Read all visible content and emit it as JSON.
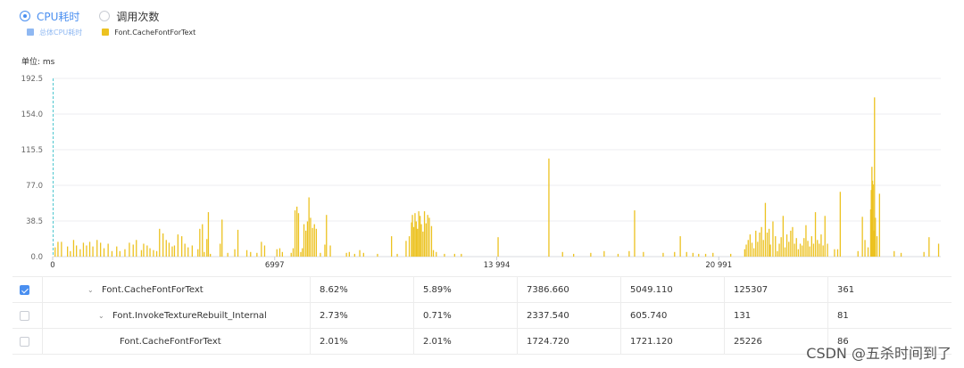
{
  "mode_toggle": {
    "options": [
      {
        "label": "CPU耗时",
        "selected": true
      },
      {
        "label": "调用次数",
        "selected": false
      }
    ]
  },
  "legend": {
    "items": [
      {
        "label": "总体CPU耗时",
        "color": "#8fb8f2"
      },
      {
        "label": "Font.CacheFontForText",
        "color": "#ecc220"
      }
    ]
  },
  "unit_label": "单位: ms",
  "chart_data": {
    "type": "bar",
    "ylabel": "",
    "xlabel": "",
    "ylim": [
      0,
      192.5
    ],
    "yticks": [
      "192.5",
      "154.0",
      "115.5",
      "77.0",
      "38.5",
      "0.0"
    ],
    "xlim": [
      0,
      27988
    ],
    "xticks": [
      "0",
      "6997",
      "13 994",
      "20 991"
    ],
    "grid": "horizontal",
    "series": [
      {
        "name": "Font.CacheFontForText",
        "color": "#ecc220",
        "points": [
          [
            60,
            10
          ],
          [
            150,
            16
          ],
          [
            260,
            16
          ],
          [
            450,
            11
          ],
          [
            540,
            6
          ],
          [
            640,
            18
          ],
          [
            730,
            12
          ],
          [
            850,
            8
          ],
          [
            950,
            15
          ],
          [
            1050,
            12
          ],
          [
            1150,
            16
          ],
          [
            1250,
            11
          ],
          [
            1380,
            18
          ],
          [
            1490,
            15
          ],
          [
            1600,
            9
          ],
          [
            1730,
            14
          ],
          [
            1850,
            6
          ],
          [
            2000,
            11
          ],
          [
            2100,
            6
          ],
          [
            2260,
            8
          ],
          [
            2400,
            15
          ],
          [
            2520,
            13
          ],
          [
            2620,
            18
          ],
          [
            2780,
            7
          ],
          [
            2850,
            14
          ],
          [
            2960,
            12
          ],
          [
            3050,
            9
          ],
          [
            3160,
            7
          ],
          [
            3260,
            6
          ],
          [
            3350,
            30
          ],
          [
            3460,
            25
          ],
          [
            3560,
            18
          ],
          [
            3650,
            15
          ],
          [
            3750,
            11
          ],
          [
            3820,
            12
          ],
          [
            3930,
            24
          ],
          [
            4050,
            22
          ],
          [
            4150,
            14
          ],
          [
            4250,
            10
          ],
          [
            4380,
            12
          ],
          [
            4560,
            8
          ],
          [
            4620,
            30
          ],
          [
            4700,
            35
          ],
          [
            4760,
            5
          ],
          [
            4840,
            19
          ],
          [
            4890,
            48
          ],
          [
            4950,
            3
          ],
          [
            5260,
            14
          ],
          [
            5320,
            40
          ],
          [
            5500,
            4
          ],
          [
            5720,
            8
          ],
          [
            5820,
            29
          ],
          [
            6100,
            7
          ],
          [
            6220,
            5
          ],
          [
            6420,
            4
          ],
          [
            6560,
            16
          ],
          [
            6660,
            12
          ],
          [
            7050,
            8
          ],
          [
            7140,
            9
          ],
          [
            7220,
            5
          ],
          [
            7500,
            4
          ],
          [
            7560,
            9
          ],
          [
            7620,
            50
          ],
          [
            7680,
            54
          ],
          [
            7730,
            47
          ],
          [
            7800,
            5
          ],
          [
            7850,
            9
          ],
          [
            7900,
            35
          ],
          [
            7960,
            28
          ],
          [
            8010,
            38
          ],
          [
            8060,
            64
          ],
          [
            8110,
            42
          ],
          [
            8170,
            31
          ],
          [
            8230,
            35
          ],
          [
            8290,
            30
          ],
          [
            8420,
            4
          ],
          [
            8560,
            13
          ],
          [
            8610,
            45
          ],
          [
            8730,
            12
          ],
          [
            9240,
            4
          ],
          [
            9330,
            5
          ],
          [
            9500,
            3
          ],
          [
            9660,
            7
          ],
          [
            9780,
            4
          ],
          [
            10220,
            3
          ],
          [
            10660,
            22
          ],
          [
            10840,
            3
          ],
          [
            11120,
            17
          ],
          [
            11220,
            22
          ],
          [
            11290,
            37
          ],
          [
            11320,
            45
          ],
          [
            11360,
            32
          ],
          [
            11400,
            47
          ],
          [
            11440,
            38
          ],
          [
            11480,
            30
          ],
          [
            11520,
            49
          ],
          [
            11560,
            44
          ],
          [
            11600,
            35
          ],
          [
            11650,
            27
          ],
          [
            11700,
            49
          ],
          [
            11750,
            36
          ],
          [
            11800,
            45
          ],
          [
            11850,
            42
          ],
          [
            11920,
            33
          ],
          [
            11980,
            7
          ],
          [
            12070,
            5
          ],
          [
            12330,
            3
          ],
          [
            12650,
            3
          ],
          [
            12860,
            3
          ],
          [
            14020,
            21
          ],
          [
            15620,
            106
          ],
          [
            16050,
            5
          ],
          [
            16400,
            3
          ],
          [
            16940,
            4
          ],
          [
            17360,
            6
          ],
          [
            17800,
            3
          ],
          [
            18150,
            6
          ],
          [
            18320,
            50
          ],
          [
            18600,
            5
          ],
          [
            19220,
            4
          ],
          [
            19580,
            5
          ],
          [
            19760,
            22
          ],
          [
            19960,
            5
          ],
          [
            20160,
            4
          ],
          [
            20340,
            3
          ],
          [
            20560,
            3
          ],
          [
            20790,
            4
          ],
          [
            21350,
            3
          ],
          [
            21790,
            8
          ],
          [
            21840,
            13
          ],
          [
            21900,
            18
          ],
          [
            21960,
            24
          ],
          [
            22020,
            15
          ],
          [
            22080,
            9
          ],
          [
            22140,
            28
          ],
          [
            22200,
            16
          ],
          [
            22260,
            26
          ],
          [
            22320,
            32
          ],
          [
            22380,
            18
          ],
          [
            22440,
            58
          ],
          [
            22500,
            26
          ],
          [
            22560,
            30
          ],
          [
            22600,
            13
          ],
          [
            22680,
            38
          ],
          [
            22760,
            22
          ],
          [
            22820,
            6
          ],
          [
            22880,
            14
          ],
          [
            22940,
            21
          ],
          [
            23000,
            44
          ],
          [
            23060,
            10
          ],
          [
            23120,
            24
          ],
          [
            23180,
            16
          ],
          [
            23240,
            28
          ],
          [
            23300,
            32
          ],
          [
            23360,
            14
          ],
          [
            23420,
            20
          ],
          [
            23480,
            8
          ],
          [
            23540,
            14
          ],
          [
            23600,
            12
          ],
          [
            23660,
            20
          ],
          [
            23720,
            34
          ],
          [
            23780,
            17
          ],
          [
            23840,
            11
          ],
          [
            23900,
            22
          ],
          [
            23960,
            14
          ],
          [
            24020,
            48
          ],
          [
            24080,
            18
          ],
          [
            24140,
            14
          ],
          [
            24200,
            24
          ],
          [
            24260,
            12
          ],
          [
            24320,
            44
          ],
          [
            24400,
            14
          ],
          [
            24620,
            8
          ],
          [
            24720,
            8
          ],
          [
            24800,
            70
          ],
          [
            25360,
            6
          ],
          [
            25500,
            43
          ],
          [
            25580,
            18
          ],
          [
            25680,
            10
          ],
          [
            25760,
            51
          ],
          [
            25780,
            72
          ],
          [
            25800,
            97
          ],
          [
            25820,
            82
          ],
          [
            25840,
            78
          ],
          [
            25860,
            28
          ],
          [
            25880,
            172
          ],
          [
            25910,
            42
          ],
          [
            25960,
            22
          ],
          [
            26040,
            68
          ],
          [
            26500,
            6
          ],
          [
            26720,
            4
          ],
          [
            27440,
            5
          ],
          [
            27600,
            21
          ],
          [
            27900,
            14
          ]
        ]
      }
    ]
  },
  "table": {
    "rows": [
      {
        "checked": true,
        "expanded": true,
        "name": "Font.CacheFontForText",
        "c1": "8.62%",
        "c2": "5.89%",
        "c3": "7386.660",
        "c4": "5049.110",
        "c5": "125307",
        "c6": "361"
      },
      {
        "checked": false,
        "expanded": true,
        "name": "Font.InvokeTextureRebuilt_Internal",
        "c1": "2.73%",
        "c2": "0.71%",
        "c3": "2337.540",
        "c4": "605.740",
        "c5": "131",
        "c6": "81"
      },
      {
        "checked": false,
        "expanded": false,
        "name": "Font.CacheFontForText",
        "c1": "2.01%",
        "c2": "2.01%",
        "c3": "1724.720",
        "c4": "1721.120",
        "c5": "25226",
        "c6": "86"
      }
    ]
  },
  "watermark": "CSDN @五杀时间到了"
}
